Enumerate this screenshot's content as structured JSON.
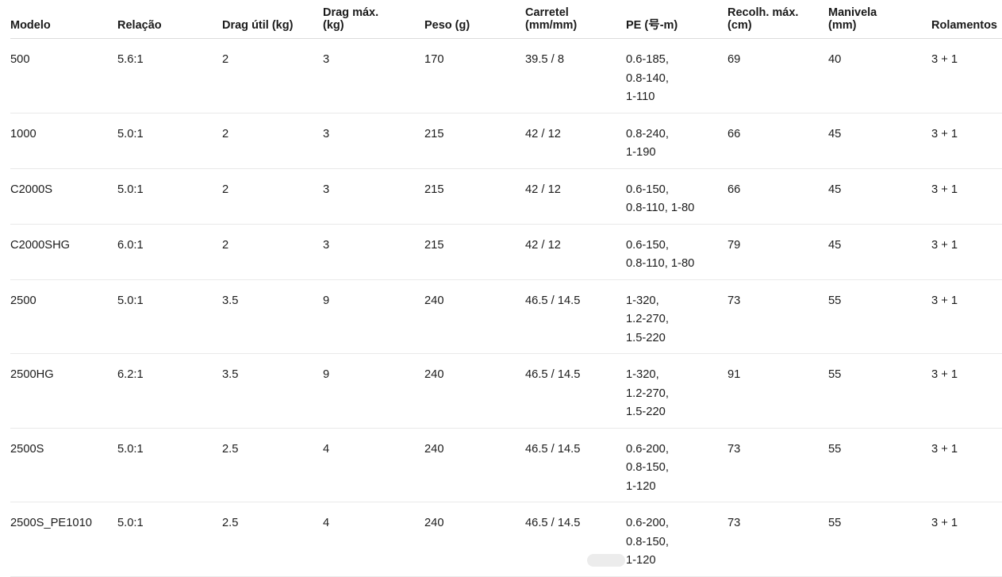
{
  "colors": {
    "background": "#ffffff",
    "text": "#1c1c1c",
    "header_border": "#dcdcdc",
    "row_border": "#e9e9e9"
  },
  "table": {
    "columns": [
      {
        "id": "modelo",
        "label": "Modelo",
        "label_lines": [
          "Modelo"
        ]
      },
      {
        "id": "relacao",
        "label": "Relação",
        "label_lines": [
          "Relação"
        ]
      },
      {
        "id": "drag_util",
        "label": "Drag útil (kg)",
        "label_lines": [
          "Drag útil (kg)"
        ]
      },
      {
        "id": "drag_max",
        "label": "Drag máx. (kg)",
        "label_lines": [
          "Drag máx.",
          "(kg)"
        ]
      },
      {
        "id": "peso",
        "label": "Peso (g)",
        "label_lines": [
          "Peso (g)"
        ]
      },
      {
        "id": "carretel",
        "label": "Carretel (mm/mm)",
        "label_lines": [
          "Carretel",
          "(mm/mm)"
        ]
      },
      {
        "id": "pe",
        "label": "PE (号-m)",
        "label_lines": [
          "PE (号-m)"
        ]
      },
      {
        "id": "recolh",
        "label": "Recolh. máx. (cm)",
        "label_lines": [
          "Recolh. máx.",
          "(cm)"
        ]
      },
      {
        "id": "manivela",
        "label": "Manivela (mm)",
        "label_lines": [
          "Manivela",
          "(mm)"
        ]
      },
      {
        "id": "rolamentos",
        "label": "Rolamentos",
        "label_lines": [
          "Rolamentos"
        ]
      }
    ],
    "rows": [
      {
        "modelo": "500",
        "relacao": "5.6:1",
        "drag_util": "2",
        "drag_max": "3",
        "peso": "170",
        "carretel": "39.5 / 8",
        "pe": [
          "0.6-185,",
          "0.8-140,",
          "1-110"
        ],
        "recolh": "69",
        "manivela": "40",
        "rolamentos": "3 + 1"
      },
      {
        "modelo": "1000",
        "relacao": "5.0:1",
        "drag_util": "2",
        "drag_max": "3",
        "peso": "215",
        "carretel": "42 / 12",
        "pe": [
          "0.8-240,",
          "1-190"
        ],
        "recolh": "66",
        "manivela": "45",
        "rolamentos": "3 + 1"
      },
      {
        "modelo": "C2000S",
        "relacao": "5.0:1",
        "drag_util": "2",
        "drag_max": "3",
        "peso": "215",
        "carretel": "42 / 12",
        "pe": [
          "0.6-150,",
          "0.8-110, 1-80"
        ],
        "recolh": "66",
        "manivela": "45",
        "rolamentos": "3 + 1"
      },
      {
        "modelo": "C2000SHG",
        "relacao": "6.0:1",
        "drag_util": "2",
        "drag_max": "3",
        "peso": "215",
        "carretel": "42 / 12",
        "pe": [
          "0.6-150,",
          "0.8-110, 1-80"
        ],
        "recolh": "79",
        "manivela": "45",
        "rolamentos": "3 + 1"
      },
      {
        "modelo": "2500",
        "relacao": "5.0:1",
        "drag_util": "3.5",
        "drag_max": "9",
        "peso": "240",
        "carretel": "46.5 / 14.5",
        "pe": [
          "1-320,",
          "1.2-270,",
          "1.5-220"
        ],
        "recolh": "73",
        "manivela": "55",
        "rolamentos": "3 + 1"
      },
      {
        "modelo": "2500HG",
        "relacao": "6.2:1",
        "drag_util": "3.5",
        "drag_max": "9",
        "peso": "240",
        "carretel": "46.5 / 14.5",
        "pe": [
          "1-320,",
          "1.2-270,",
          "1.5-220"
        ],
        "recolh": "91",
        "manivela": "55",
        "rolamentos": "3 + 1"
      },
      {
        "modelo": "2500S",
        "relacao": "5.0:1",
        "drag_util": "2.5",
        "drag_max": "4",
        "peso": "240",
        "carretel": "46.5 / 14.5",
        "pe": [
          "0.6-200,",
          "0.8-150,",
          "1-120"
        ],
        "recolh": "73",
        "manivela": "55",
        "rolamentos": "3 + 1"
      },
      {
        "modelo": "2500S_PE1010",
        "relacao": "5.0:1",
        "drag_util": "2.5",
        "drag_max": "4",
        "peso": "240",
        "carretel": "46.5 / 14.5",
        "pe": [
          "0.6-200,",
          "0.8-150,",
          "1-120"
        ],
        "recolh": "73",
        "manivela": "55",
        "rolamentos": "3 + 1"
      }
    ]
  }
}
